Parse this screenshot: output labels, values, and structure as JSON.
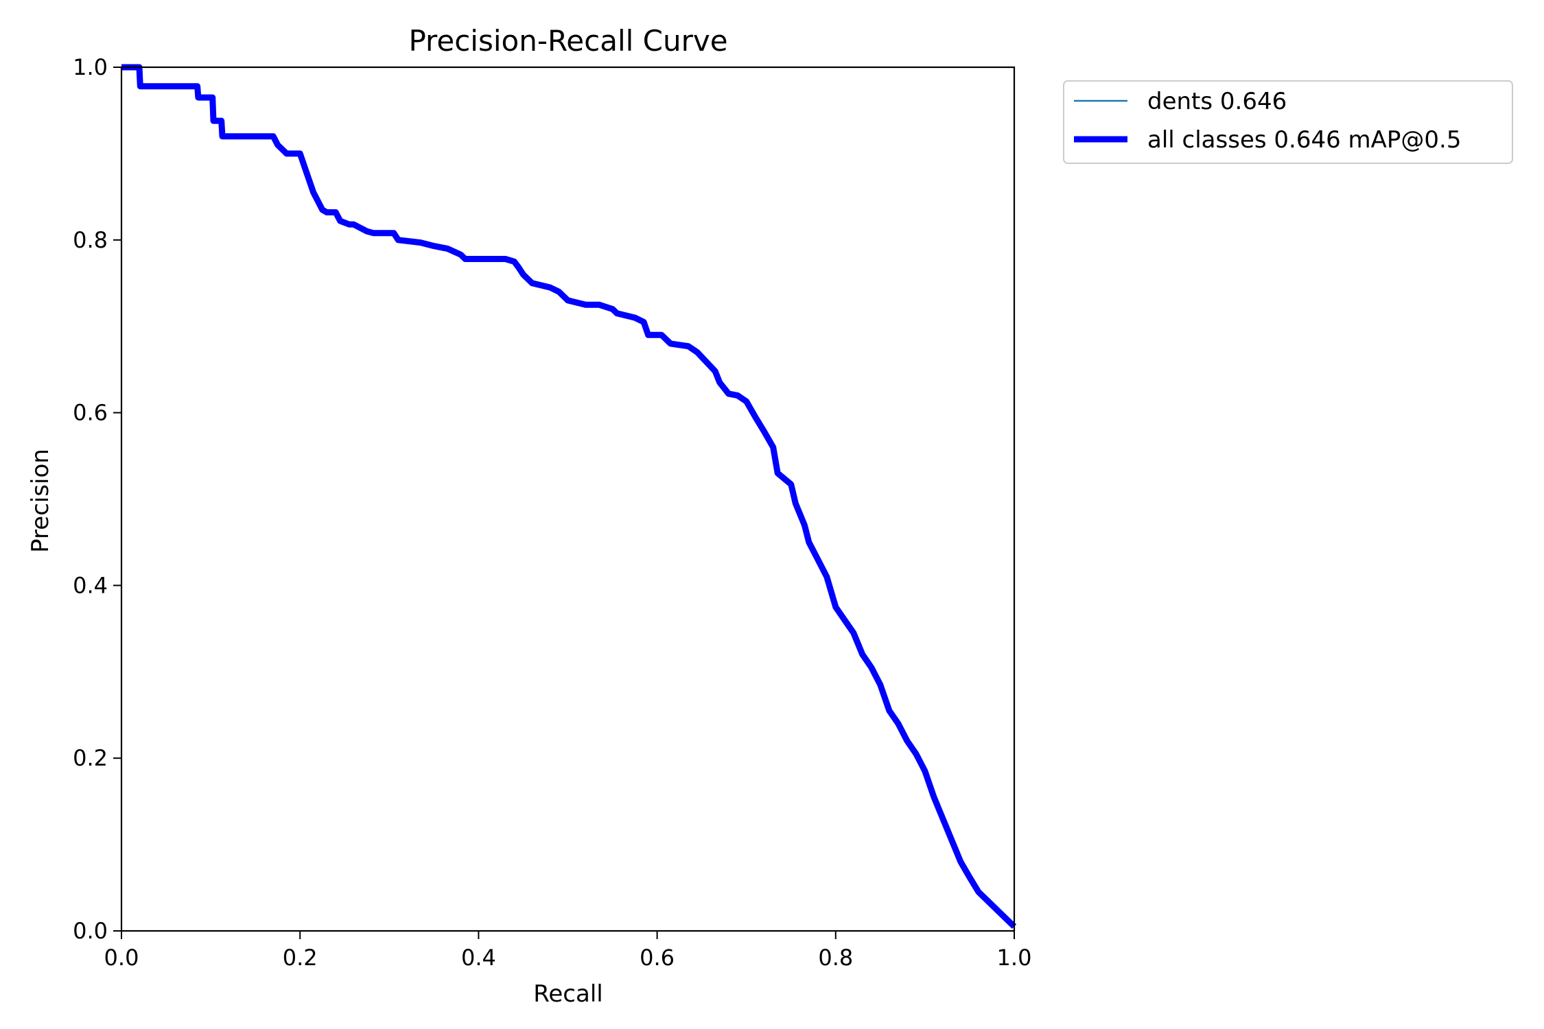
{
  "chart_data": {
    "type": "line",
    "title": "Precision-Recall Curve",
    "xlabel": "Recall",
    "ylabel": "Precision",
    "xlim": [
      0.0,
      1.0
    ],
    "ylim": [
      0.0,
      1.0
    ],
    "grid": false,
    "legend_placement": "outside-top-right",
    "xticks": [
      "0.0",
      "0.2",
      "0.4",
      "0.6",
      "0.8",
      "1.0"
    ],
    "yticks": [
      "0.0",
      "0.2",
      "0.4",
      "0.6",
      "0.8",
      "1.0"
    ],
    "series": [
      {
        "name": "dents 0.646",
        "color": "#1f77b4",
        "style": "thin",
        "x": [
          0.0,
          0.02,
          0.021,
          0.085,
          0.086,
          0.102,
          0.103,
          0.112,
          0.113,
          0.17,
          0.175,
          0.185,
          0.2,
          0.205,
          0.21,
          0.215,
          0.22,
          0.225,
          0.23,
          0.24,
          0.245,
          0.255,
          0.26,
          0.275,
          0.282,
          0.305,
          0.31,
          0.335,
          0.35,
          0.365,
          0.38,
          0.385,
          0.43,
          0.44,
          0.445,
          0.45,
          0.46,
          0.48,
          0.49,
          0.5,
          0.52,
          0.535,
          0.55,
          0.555,
          0.575,
          0.585,
          0.59,
          0.605,
          0.615,
          0.635,
          0.645,
          0.665,
          0.67,
          0.68,
          0.69,
          0.7,
          0.71,
          0.72,
          0.73,
          0.735,
          0.75,
          0.755,
          0.765,
          0.77,
          0.78,
          0.79,
          0.8,
          0.81,
          0.82,
          0.83,
          0.84,
          0.85,
          0.86,
          0.87,
          0.88,
          0.89,
          0.9,
          0.91,
          0.92,
          0.93,
          0.94,
          0.95,
          0.96,
          0.97,
          0.98,
          0.99,
          1.0
        ],
        "y": [
          1.0,
          1.0,
          0.978,
          0.978,
          0.965,
          0.965,
          0.938,
          0.938,
          0.92,
          0.92,
          0.91,
          0.9,
          0.9,
          0.885,
          0.87,
          0.855,
          0.845,
          0.835,
          0.832,
          0.832,
          0.822,
          0.818,
          0.818,
          0.81,
          0.808,
          0.808,
          0.8,
          0.797,
          0.793,
          0.79,
          0.783,
          0.778,
          0.778,
          0.775,
          0.768,
          0.76,
          0.75,
          0.745,
          0.74,
          0.73,
          0.725,
          0.725,
          0.72,
          0.715,
          0.71,
          0.705,
          0.69,
          0.69,
          0.68,
          0.677,
          0.67,
          0.648,
          0.635,
          0.622,
          0.62,
          0.613,
          0.595,
          0.578,
          0.56,
          0.53,
          0.517,
          0.495,
          0.47,
          0.45,
          0.43,
          0.41,
          0.375,
          0.36,
          0.345,
          0.32,
          0.305,
          0.285,
          0.255,
          0.24,
          0.22,
          0.205,
          0.185,
          0.155,
          0.13,
          0.105,
          0.08,
          0.062,
          0.045,
          0.035,
          0.025,
          0.015,
          0.005
        ]
      },
      {
        "name": "all classes 0.646 mAP@0.5",
        "color": "#0000ff",
        "style": "thick",
        "x": [
          0.0,
          0.02,
          0.021,
          0.085,
          0.086,
          0.102,
          0.103,
          0.112,
          0.113,
          0.17,
          0.175,
          0.185,
          0.2,
          0.205,
          0.21,
          0.215,
          0.22,
          0.225,
          0.23,
          0.24,
          0.245,
          0.255,
          0.26,
          0.275,
          0.282,
          0.305,
          0.31,
          0.335,
          0.35,
          0.365,
          0.38,
          0.385,
          0.43,
          0.44,
          0.445,
          0.45,
          0.46,
          0.48,
          0.49,
          0.5,
          0.52,
          0.535,
          0.55,
          0.555,
          0.575,
          0.585,
          0.59,
          0.605,
          0.615,
          0.635,
          0.645,
          0.665,
          0.67,
          0.68,
          0.69,
          0.7,
          0.71,
          0.72,
          0.73,
          0.735,
          0.75,
          0.755,
          0.765,
          0.77,
          0.78,
          0.79,
          0.8,
          0.81,
          0.82,
          0.83,
          0.84,
          0.85,
          0.86,
          0.87,
          0.88,
          0.89,
          0.9,
          0.91,
          0.92,
          0.93,
          0.94,
          0.95,
          0.96,
          0.97,
          0.98,
          0.99,
          1.0
        ],
        "y": [
          1.0,
          1.0,
          0.978,
          0.978,
          0.965,
          0.965,
          0.938,
          0.938,
          0.92,
          0.92,
          0.91,
          0.9,
          0.9,
          0.885,
          0.87,
          0.855,
          0.845,
          0.835,
          0.832,
          0.832,
          0.822,
          0.818,
          0.818,
          0.81,
          0.808,
          0.808,
          0.8,
          0.797,
          0.793,
          0.79,
          0.783,
          0.778,
          0.778,
          0.775,
          0.768,
          0.76,
          0.75,
          0.745,
          0.74,
          0.73,
          0.725,
          0.725,
          0.72,
          0.715,
          0.71,
          0.705,
          0.69,
          0.69,
          0.68,
          0.677,
          0.67,
          0.648,
          0.635,
          0.622,
          0.62,
          0.613,
          0.595,
          0.578,
          0.56,
          0.53,
          0.517,
          0.495,
          0.47,
          0.45,
          0.43,
          0.41,
          0.375,
          0.36,
          0.345,
          0.32,
          0.305,
          0.285,
          0.255,
          0.24,
          0.22,
          0.205,
          0.185,
          0.155,
          0.13,
          0.105,
          0.08,
          0.062,
          0.045,
          0.035,
          0.025,
          0.015,
          0.005
        ]
      }
    ]
  }
}
